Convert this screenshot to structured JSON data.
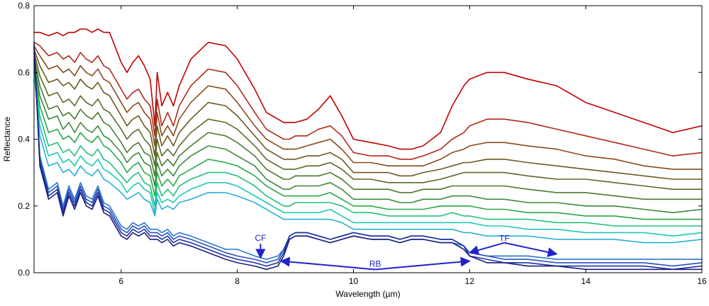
{
  "chart_data": {
    "type": "line",
    "xlabel": "Wavelength (µm)",
    "ylabel": "Reflectance",
    "xlim": [
      4.5,
      16
    ],
    "ylim": [
      0,
      0.8
    ],
    "x_ticks": [
      6,
      8,
      10,
      12,
      14,
      16
    ],
    "x_tick_labels": [
      "6",
      "8",
      "10",
      "12",
      "14",
      "16"
    ],
    "y_ticks": [
      0.0,
      0.2,
      0.4,
      0.6,
      0.8
    ],
    "y_tick_labels": [
      "0.0",
      "0.2",
      "0.4",
      "0.6",
      "0.8"
    ],
    "grid": false,
    "x": [
      4.5,
      4.6,
      4.75,
      4.9,
      5.0,
      5.1,
      5.2,
      5.3,
      5.4,
      5.5,
      5.6,
      5.7,
      5.8,
      6.0,
      6.1,
      6.2,
      6.3,
      6.4,
      6.5,
      6.58,
      6.62,
      6.7,
      6.8,
      6.9,
      7.0,
      7.2,
      7.5,
      7.8,
      8.0,
      8.3,
      8.5,
      8.7,
      8.8,
      8.9,
      9.0,
      9.2,
      9.4,
      9.6,
      9.8,
      10.0,
      10.3,
      10.6,
      10.8,
      11.0,
      11.2,
      11.5,
      11.7,
      11.9,
      12.0,
      12.3,
      12.6,
      13.0,
      13.5,
      14.0,
      14.5,
      15.0,
      15.5,
      16.0
    ],
    "series": [
      {
        "color": "#c00000",
        "values": [
          0.72,
          0.72,
          0.71,
          0.72,
          0.71,
          0.72,
          0.72,
          0.73,
          0.73,
          0.72,
          0.73,
          0.72,
          0.72,
          0.63,
          0.6,
          0.63,
          0.65,
          0.62,
          0.58,
          0.44,
          0.6,
          0.5,
          0.54,
          0.5,
          0.56,
          0.64,
          0.69,
          0.68,
          0.64,
          0.55,
          0.48,
          0.46,
          0.45,
          0.45,
          0.45,
          0.46,
          0.49,
          0.53,
          0.47,
          0.4,
          0.39,
          0.38,
          0.37,
          0.37,
          0.38,
          0.42,
          0.5,
          0.56,
          0.58,
          0.6,
          0.6,
          0.58,
          0.56,
          0.51,
          0.48,
          0.45,
          0.42,
          0.44
        ]
      },
      {
        "color": "#b02a1a",
        "values": [
          0.69,
          0.68,
          0.65,
          0.66,
          0.64,
          0.65,
          0.63,
          0.66,
          0.64,
          0.63,
          0.65,
          0.62,
          0.61,
          0.55,
          0.52,
          0.54,
          0.55,
          0.52,
          0.5,
          0.41,
          0.52,
          0.44,
          0.48,
          0.44,
          0.5,
          0.56,
          0.61,
          0.6,
          0.56,
          0.48,
          0.43,
          0.41,
          0.4,
          0.4,
          0.41,
          0.41,
          0.43,
          0.44,
          0.41,
          0.36,
          0.35,
          0.35,
          0.34,
          0.34,
          0.35,
          0.37,
          0.4,
          0.42,
          0.44,
          0.46,
          0.46,
          0.45,
          0.43,
          0.41,
          0.39,
          0.37,
          0.35,
          0.36
        ]
      },
      {
        "color": "#8a4a1c",
        "values": [
          0.68,
          0.65,
          0.61,
          0.62,
          0.6,
          0.61,
          0.59,
          0.62,
          0.6,
          0.59,
          0.61,
          0.58,
          0.57,
          0.51,
          0.48,
          0.5,
          0.51,
          0.48,
          0.46,
          0.38,
          0.48,
          0.41,
          0.44,
          0.41,
          0.46,
          0.51,
          0.56,
          0.55,
          0.51,
          0.44,
          0.4,
          0.38,
          0.37,
          0.37,
          0.37,
          0.38,
          0.39,
          0.4,
          0.37,
          0.33,
          0.33,
          0.32,
          0.32,
          0.32,
          0.32,
          0.34,
          0.36,
          0.37,
          0.38,
          0.39,
          0.39,
          0.38,
          0.37,
          0.35,
          0.34,
          0.32,
          0.31,
          0.31
        ]
      },
      {
        "color": "#6a5a22",
        "values": [
          0.67,
          0.62,
          0.57,
          0.58,
          0.56,
          0.57,
          0.55,
          0.58,
          0.56,
          0.55,
          0.57,
          0.54,
          0.53,
          0.47,
          0.44,
          0.46,
          0.47,
          0.44,
          0.42,
          0.35,
          0.44,
          0.38,
          0.41,
          0.38,
          0.42,
          0.46,
          0.51,
          0.5,
          0.47,
          0.41,
          0.37,
          0.35,
          0.34,
          0.34,
          0.34,
          0.35,
          0.35,
          0.36,
          0.34,
          0.3,
          0.3,
          0.3,
          0.29,
          0.29,
          0.3,
          0.31,
          0.32,
          0.33,
          0.33,
          0.34,
          0.34,
          0.33,
          0.32,
          0.31,
          0.3,
          0.29,
          0.28,
          0.28
        ]
      },
      {
        "color": "#5a6a2a",
        "values": [
          0.66,
          0.59,
          0.53,
          0.54,
          0.51,
          0.52,
          0.5,
          0.53,
          0.51,
          0.5,
          0.52,
          0.49,
          0.48,
          0.43,
          0.4,
          0.42,
          0.43,
          0.4,
          0.38,
          0.32,
          0.4,
          0.35,
          0.37,
          0.35,
          0.38,
          0.42,
          0.46,
          0.45,
          0.43,
          0.38,
          0.34,
          0.32,
          0.31,
          0.31,
          0.31,
          0.32,
          0.32,
          0.33,
          0.31,
          0.28,
          0.28,
          0.27,
          0.27,
          0.27,
          0.27,
          0.28,
          0.29,
          0.3,
          0.3,
          0.3,
          0.3,
          0.29,
          0.28,
          0.28,
          0.27,
          0.26,
          0.25,
          0.25
        ]
      },
      {
        "color": "#4a7a2e",
        "values": [
          0.65,
          0.56,
          0.49,
          0.5,
          0.47,
          0.48,
          0.46,
          0.49,
          0.47,
          0.46,
          0.48,
          0.45,
          0.44,
          0.39,
          0.36,
          0.38,
          0.39,
          0.36,
          0.35,
          0.29,
          0.36,
          0.32,
          0.34,
          0.32,
          0.35,
          0.38,
          0.42,
          0.41,
          0.39,
          0.35,
          0.31,
          0.29,
          0.28,
          0.28,
          0.29,
          0.29,
          0.29,
          0.3,
          0.28,
          0.25,
          0.25,
          0.25,
          0.24,
          0.24,
          0.25,
          0.25,
          0.26,
          0.26,
          0.26,
          0.26,
          0.26,
          0.25,
          0.24,
          0.24,
          0.23,
          0.22,
          0.22,
          0.22
        ]
      },
      {
        "color": "#3a8a3e",
        "values": [
          0.64,
          0.53,
          0.46,
          0.47,
          0.43,
          0.45,
          0.42,
          0.45,
          0.43,
          0.42,
          0.44,
          0.41,
          0.4,
          0.36,
          0.33,
          0.35,
          0.36,
          0.33,
          0.32,
          0.26,
          0.33,
          0.29,
          0.31,
          0.29,
          0.32,
          0.35,
          0.38,
          0.37,
          0.35,
          0.32,
          0.28,
          0.26,
          0.25,
          0.25,
          0.26,
          0.26,
          0.26,
          0.27,
          0.25,
          0.22,
          0.22,
          0.22,
          0.21,
          0.21,
          0.22,
          0.22,
          0.23,
          0.23,
          0.23,
          0.22,
          0.22,
          0.21,
          0.21,
          0.2,
          0.2,
          0.19,
          0.18,
          0.19
        ]
      },
      {
        "color": "#2aa84a",
        "values": [
          0.63,
          0.5,
          0.42,
          0.43,
          0.4,
          0.41,
          0.39,
          0.42,
          0.4,
          0.39,
          0.41,
          0.38,
          0.37,
          0.33,
          0.3,
          0.32,
          0.33,
          0.3,
          0.29,
          0.23,
          0.3,
          0.26,
          0.28,
          0.26,
          0.29,
          0.31,
          0.34,
          0.33,
          0.32,
          0.29,
          0.26,
          0.24,
          0.23,
          0.23,
          0.23,
          0.23,
          0.23,
          0.24,
          0.22,
          0.2,
          0.2,
          0.19,
          0.19,
          0.19,
          0.19,
          0.2,
          0.2,
          0.2,
          0.2,
          0.19,
          0.19,
          0.18,
          0.18,
          0.17,
          0.17,
          0.16,
          0.16,
          0.16
        ]
      },
      {
        "color": "#22c07a",
        "values": [
          0.62,
          0.47,
          0.38,
          0.39,
          0.36,
          0.37,
          0.35,
          0.38,
          0.36,
          0.35,
          0.37,
          0.34,
          0.33,
          0.29,
          0.27,
          0.29,
          0.3,
          0.27,
          0.26,
          0.2,
          0.27,
          0.23,
          0.25,
          0.23,
          0.26,
          0.28,
          0.3,
          0.3,
          0.29,
          0.26,
          0.23,
          0.21,
          0.2,
          0.2,
          0.21,
          0.21,
          0.21,
          0.21,
          0.2,
          0.18,
          0.18,
          0.17,
          0.17,
          0.17,
          0.17,
          0.17,
          0.18,
          0.17,
          0.17,
          0.16,
          0.16,
          0.16,
          0.15,
          0.15,
          0.14,
          0.14,
          0.14,
          0.14
        ]
      },
      {
        "color": "#20c8b4",
        "values": [
          0.61,
          0.44,
          0.35,
          0.36,
          0.33,
          0.34,
          0.32,
          0.35,
          0.33,
          0.32,
          0.34,
          0.31,
          0.3,
          0.27,
          0.24,
          0.26,
          0.27,
          0.25,
          0.24,
          0.18,
          0.24,
          0.21,
          0.22,
          0.21,
          0.23,
          0.25,
          0.27,
          0.27,
          0.26,
          0.23,
          0.21,
          0.19,
          0.18,
          0.18,
          0.18,
          0.18,
          0.18,
          0.19,
          0.17,
          0.15,
          0.15,
          0.15,
          0.15,
          0.15,
          0.15,
          0.15,
          0.15,
          0.15,
          0.15,
          0.14,
          0.14,
          0.13,
          0.13,
          0.12,
          0.12,
          0.12,
          0.11,
          0.12
        ]
      },
      {
        "color": "#28b0d0",
        "values": [
          0.6,
          0.41,
          0.32,
          0.33,
          0.3,
          0.31,
          0.29,
          0.32,
          0.3,
          0.29,
          0.31,
          0.28,
          0.27,
          0.24,
          0.22,
          0.23,
          0.24,
          0.22,
          0.21,
          0.17,
          0.22,
          0.19,
          0.2,
          0.19,
          0.21,
          0.22,
          0.24,
          0.24,
          0.23,
          0.21,
          0.19,
          0.17,
          0.16,
          0.16,
          0.16,
          0.16,
          0.16,
          0.16,
          0.15,
          0.13,
          0.13,
          0.13,
          0.13,
          0.13,
          0.13,
          0.13,
          0.13,
          0.12,
          0.12,
          0.11,
          0.11,
          0.11,
          0.1,
          0.1,
          0.1,
          0.09,
          0.09,
          0.1
        ]
      },
      {
        "color": "#2a7ac8",
        "values": [
          0.66,
          0.35,
          0.25,
          0.27,
          0.2,
          0.26,
          0.22,
          0.27,
          0.23,
          0.22,
          0.26,
          0.21,
          0.2,
          0.14,
          0.13,
          0.15,
          0.14,
          0.15,
          0.13,
          0.13,
          0.13,
          0.12,
          0.13,
          0.11,
          0.12,
          0.11,
          0.09,
          0.07,
          0.07,
          0.05,
          0.04,
          0.05,
          0.07,
          0.1,
          0.11,
          0.11,
          0.1,
          0.09,
          0.1,
          0.11,
          0.1,
          0.1,
          0.09,
          0.1,
          0.1,
          0.09,
          0.09,
          0.08,
          0.06,
          0.05,
          0.05,
          0.05,
          0.04,
          0.04,
          0.04,
          0.04,
          0.04,
          0.04
        ]
      },
      {
        "color": "#2a50c0",
        "values": [
          0.67,
          0.34,
          0.24,
          0.26,
          0.19,
          0.25,
          0.21,
          0.26,
          0.22,
          0.21,
          0.25,
          0.2,
          0.19,
          0.13,
          0.12,
          0.14,
          0.13,
          0.14,
          0.12,
          0.12,
          0.12,
          0.11,
          0.12,
          0.1,
          0.11,
          0.1,
          0.08,
          0.06,
          0.05,
          0.04,
          0.03,
          0.04,
          0.07,
          0.11,
          0.12,
          0.12,
          0.11,
          0.1,
          0.11,
          0.12,
          0.11,
          0.11,
          0.1,
          0.11,
          0.11,
          0.1,
          0.1,
          0.08,
          0.06,
          0.05,
          0.04,
          0.04,
          0.03,
          0.03,
          0.03,
          0.03,
          0.02,
          0.03
        ]
      },
      {
        "color": "#1e32a0",
        "values": [
          0.68,
          0.33,
          0.23,
          0.25,
          0.18,
          0.24,
          0.2,
          0.25,
          0.21,
          0.2,
          0.24,
          0.19,
          0.18,
          0.12,
          0.11,
          0.13,
          0.12,
          0.13,
          0.11,
          0.11,
          0.11,
          0.1,
          0.11,
          0.09,
          0.1,
          0.09,
          0.07,
          0.05,
          0.04,
          0.03,
          0.02,
          0.03,
          0.06,
          0.11,
          0.12,
          0.12,
          0.11,
          0.1,
          0.11,
          0.12,
          0.11,
          0.11,
          0.1,
          0.11,
          0.11,
          0.1,
          0.1,
          0.08,
          0.05,
          0.04,
          0.03,
          0.03,
          0.02,
          0.02,
          0.02,
          0.02,
          0.01,
          0.02
        ]
      },
      {
        "color": "#1a1e80",
        "values": [
          0.69,
          0.32,
          0.22,
          0.24,
          0.17,
          0.23,
          0.19,
          0.24,
          0.2,
          0.19,
          0.23,
          0.18,
          0.17,
          0.11,
          0.1,
          0.12,
          0.11,
          0.12,
          0.1,
          0.1,
          0.1,
          0.09,
          0.1,
          0.08,
          0.09,
          0.08,
          0.06,
          0.04,
          0.03,
          0.02,
          0.01,
          0.02,
          0.05,
          0.1,
          0.11,
          0.11,
          0.1,
          0.09,
          0.1,
          0.11,
          0.1,
          0.1,
          0.09,
          0.1,
          0.1,
          0.09,
          0.09,
          0.07,
          0.05,
          0.03,
          0.03,
          0.02,
          0.02,
          0.01,
          0.01,
          0.01,
          0.01,
          0.01
        ]
      }
    ],
    "annotations": [
      {
        "label": "CF",
        "color": "#2222cc",
        "at_x": 8.4,
        "at_y": 0.04
      },
      {
        "label": "RB",
        "color": "#2222cc",
        "from_x": 8.75,
        "to_x": 12.0,
        "y": 0.035
      },
      {
        "label": "TF",
        "color": "#2222cc",
        "from_x": 12.0,
        "to_x": 13.5,
        "y": 0.06
      }
    ]
  }
}
